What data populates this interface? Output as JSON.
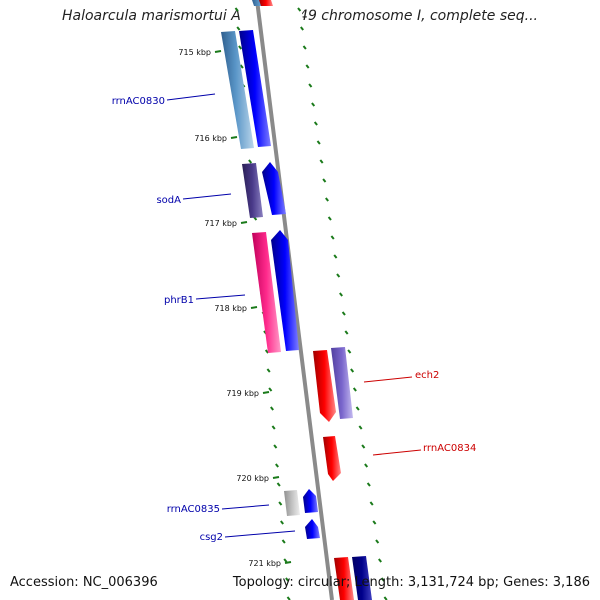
{
  "title": "Haloarcula marismortui ATCC 43049 chromosome I, complete seq...",
  "footer": {
    "accession": "Accession: NC_006396",
    "summary": "Topology: circular; Length: 3,131,724 bp; Genes: 3,186"
  },
  "ticks": [
    {
      "label": "715 kbp"
    },
    {
      "label": "716 kbp"
    },
    {
      "label": "717 kbp"
    },
    {
      "label": "718 kbp"
    },
    {
      "label": "719 kbp"
    },
    {
      "label": "720 kbp"
    },
    {
      "label": "721 kbp"
    }
  ],
  "gene_labels": [
    {
      "name": "rrnAC0830",
      "strand": "forward"
    },
    {
      "name": "sodA",
      "strand": "forward"
    },
    {
      "name": "phrB1",
      "strand": "forward"
    },
    {
      "name": "ech2",
      "strand": "reverse"
    },
    {
      "name": "rrnAC0834",
      "strand": "reverse"
    },
    {
      "name": "rrnAC0835",
      "strand": "forward"
    },
    {
      "name": "csg2",
      "strand": "forward"
    }
  ],
  "colors": {
    "forward_label": "#0000aa",
    "reverse_label": "#cc0000",
    "tick_green": "#1a7a1a",
    "backbone": "#8a8a8a"
  }
}
